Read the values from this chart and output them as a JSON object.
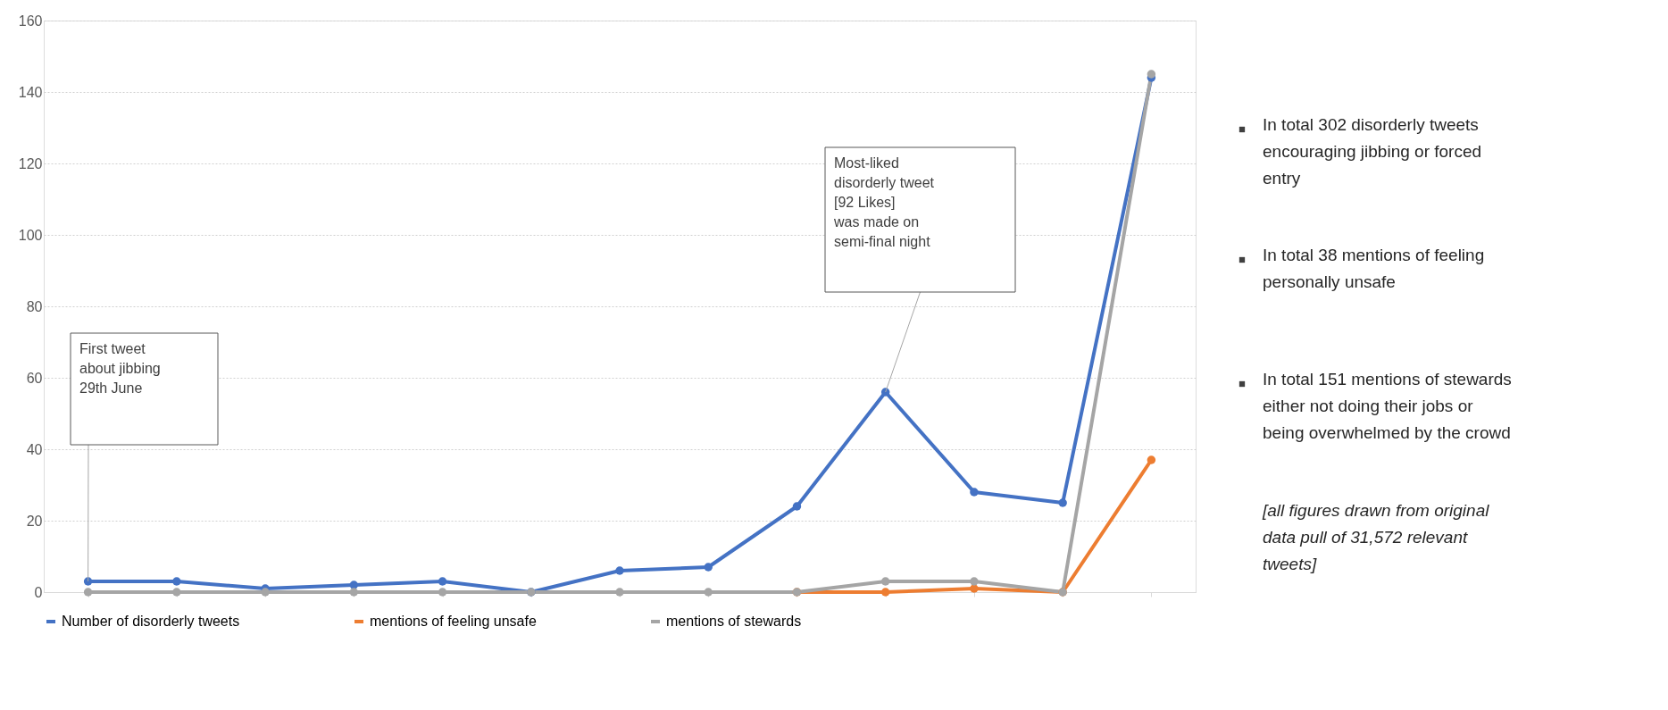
{
  "chart_data": {
    "type": "line",
    "categories": [
      null,
      null,
      null,
      null,
      null,
      null,
      null,
      null,
      null,
      null,
      null,
      null,
      null
    ],
    "series": [
      {
        "name": "Number of disorderly tweets",
        "color": "#4472c4",
        "values": [
          3,
          3,
          1,
          2,
          3,
          0,
          6,
          7,
          24,
          56,
          28,
          25,
          144
        ]
      },
      {
        "name": "mentions of feeling unsafe",
        "color": "#ed7d31",
        "values": [
          null,
          null,
          null,
          null,
          null,
          null,
          null,
          null,
          0,
          0,
          1,
          0,
          37
        ]
      },
      {
        "name": "mentions of stewards",
        "color": "#a5a5a5",
        "values": [
          0,
          0,
          0,
          0,
          0,
          0,
          0,
          0,
          0,
          3,
          3,
          0,
          145
        ]
      }
    ],
    "ylim": [
      0,
      160
    ],
    "yticks": [
      0,
      20,
      40,
      60,
      80,
      100,
      120,
      140,
      160
    ],
    "grid": "y",
    "legend": "bottom",
    "marker": "circle",
    "line_style": "solid",
    "annotations": [
      "First tweet\nabout jibbing\n29th June",
      "Most-liked\ndisorderly tweet\n[92 Likes]\nwas made on\nsemi-final night",
      "In total 302 disorderly tweets\nencouraging jibbing or forced\nentry",
      "In total 38 mentions of feeling\npersonally unsafe",
      "In total 151 mentions of stewards\neither not doing their jobs or\nbeing overwhelmed by the crowd",
      "[all figures drawn from original\ndata pull of 31,572 relevant\ntweets]"
    ]
  }
}
